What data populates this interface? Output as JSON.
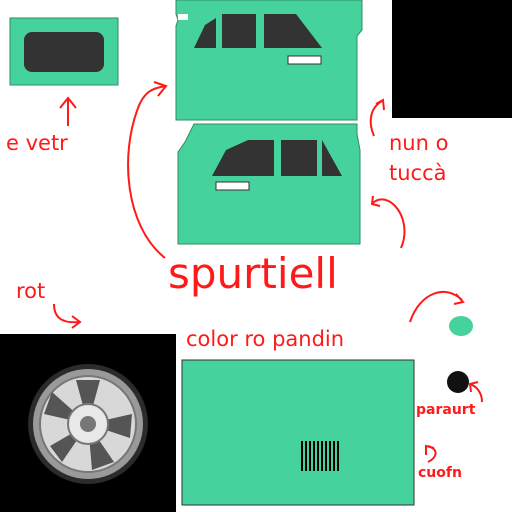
{
  "labels": {
    "vetr": "e vetr",
    "nun": "nun o",
    "tucca": "tuccà",
    "spurtiell": "spurtiell",
    "rot": "rot",
    "color": "color ro pandin",
    "paraurt": "paraurt",
    "cuofn": "cuofn"
  },
  "colors": {
    "car_green": "#46d29c",
    "window_dark": "#333333",
    "annotation_red": "#ff1a1a",
    "black": "#000000",
    "white": "#ffffff"
  }
}
